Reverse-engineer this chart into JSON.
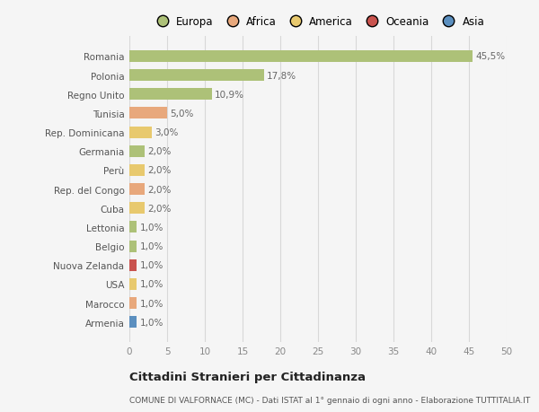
{
  "categories": [
    "Romania",
    "Polonia",
    "Regno Unito",
    "Tunisia",
    "Rep. Dominicana",
    "Germania",
    "Perù",
    "Rep. del Congo",
    "Cuba",
    "Lettonia",
    "Belgio",
    "Nuova Zelanda",
    "USA",
    "Marocco",
    "Armenia"
  ],
  "values": [
    45.5,
    17.8,
    10.9,
    5.0,
    3.0,
    2.0,
    2.0,
    2.0,
    2.0,
    1.0,
    1.0,
    1.0,
    1.0,
    1.0,
    1.0
  ],
  "labels": [
    "45,5%",
    "17,8%",
    "10,9%",
    "5,0%",
    "3,0%",
    "2,0%",
    "2,0%",
    "2,0%",
    "2,0%",
    "1,0%",
    "1,0%",
    "1,0%",
    "1,0%",
    "1,0%",
    "1,0%"
  ],
  "colors": [
    "#adc178",
    "#adc178",
    "#adc178",
    "#e8a87c",
    "#e8c96e",
    "#adc178",
    "#e8c96e",
    "#e8a87c",
    "#e8c96e",
    "#adc178",
    "#adc178",
    "#c9534e",
    "#e8c96e",
    "#e8a87c",
    "#5b8fbf"
  ],
  "legend_labels": [
    "Europa",
    "Africa",
    "America",
    "Oceania",
    "Asia"
  ],
  "legend_colors": [
    "#adc178",
    "#e8a87c",
    "#e8c96e",
    "#c9534e",
    "#5b8fbf"
  ],
  "xlim": [
    0,
    50
  ],
  "xticks": [
    0,
    5,
    10,
    15,
    20,
    25,
    30,
    35,
    40,
    45,
    50
  ],
  "title": "Cittadini Stranieri per Cittadinanza",
  "subtitle": "COMUNE DI VALFORNACE (MC) - Dati ISTAT al 1° gennaio di ogni anno - Elaborazione TUTTITALIA.IT",
  "bg_color": "#f5f5f5",
  "grid_color": "#d8d8d8",
  "bar_height": 0.62,
  "label_color": "#666666",
  "ytick_color": "#555555"
}
